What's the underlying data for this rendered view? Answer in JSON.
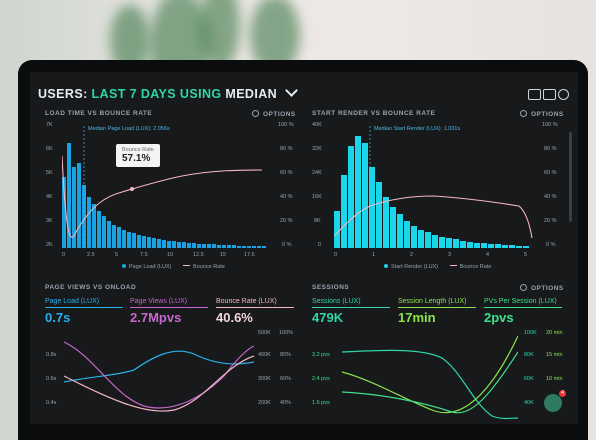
{
  "header": {
    "title_part1": "USERS:",
    "title_part2": "LAST 7 DAYS",
    "title_part3": "USING",
    "title_part4": "MEDIAN"
  },
  "panels": {
    "load": {
      "title": "LOAD TIME VS BOUNCE RATE",
      "options": "OPTIONS",
      "median_label": "Median Page Load (LUX): 2.056s",
      "tooltip_label": "Bounce Rate",
      "tooltip_value": "57.1%",
      "y_left": [
        "7K",
        "6K",
        "5K",
        "4K",
        "3K",
        "2K",
        "1K",
        "0"
      ],
      "y_right": [
        "100 %",
        "80 %",
        "60 %",
        "40 %",
        "20 %",
        "0 %"
      ],
      "x": [
        "0",
        "2.5",
        "5",
        "7.5",
        "10",
        "12.5",
        "15",
        "17.5"
      ],
      "legend_a": "Page Load (LUX)",
      "legend_b": "Bounce Rate"
    },
    "render": {
      "title": "START RENDER VS BOUNCE RATE",
      "options": "OPTIONS",
      "median_label": "Median Start Render (LUX): 1.031s",
      "y_left": [
        "40K",
        "32K",
        "24K",
        "16K",
        "8K",
        "0"
      ],
      "y_right": [
        "100 %",
        "80 %",
        "60 %",
        "40 %",
        "20 %",
        "0 %"
      ],
      "x": [
        "0",
        "1",
        "2",
        "3",
        "4",
        "5"
      ],
      "legend_a": "Start Render (LUX)",
      "legend_b": "Bounce Rate"
    },
    "pageviews": {
      "title": "PAGE VIEWS VS ONLOAD",
      "metrics": [
        {
          "label": "Page Load (LUX)",
          "value": "0.7s",
          "color": "#2bb1e8"
        },
        {
          "label": "Page Views (LUX)",
          "value": "2.7Mpvs",
          "color": "#c867cf"
        },
        {
          "label": "Bounce Rate (LUX)",
          "value": "40.6%",
          "color": "#f2b6c6"
        }
      ],
      "y_left": [
        "0.8s",
        "0.6s",
        "0.4s",
        "0.2s"
      ],
      "y_mid": [
        "500K",
        "400K",
        "300K",
        "200K"
      ],
      "y_right": [
        "100%",
        "80%",
        "60%",
        "40%",
        "20%"
      ]
    },
    "sessions": {
      "title": "SESSIONS",
      "options": "OPTIONS",
      "metrics": [
        {
          "label": "Sessions (LUX)",
          "value": "479K",
          "color": "#2fd6a6"
        },
        {
          "label": "Session Length (LUX)",
          "value": "17min",
          "color": "#8be64a"
        },
        {
          "label": "PVs Per Session (LUX)",
          "value": "2pvs",
          "color": "#3fe08a"
        }
      ],
      "y_left": [
        "3.2 pvs",
        "2.4 pvs",
        "1.6 pvs"
      ],
      "y_right_a": [
        "100K",
        "80K",
        "60K",
        "40K"
      ],
      "y_right_b": [
        "20 min",
        "15 min",
        "10 min"
      ]
    }
  },
  "notification_count": "4",
  "colors": {
    "bar_blue": "#1aa3e0",
    "bar_cyan": "#19d6ea",
    "accent_green": "#2fd6a6",
    "bounce_pink": "#f6b7c4"
  }
}
